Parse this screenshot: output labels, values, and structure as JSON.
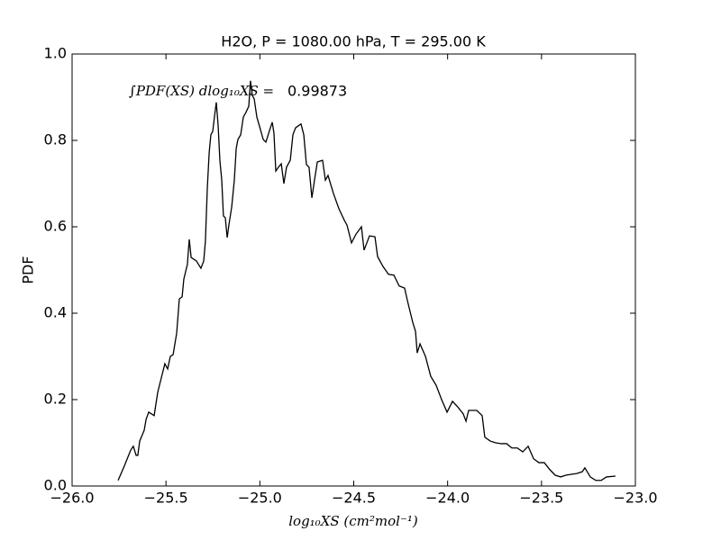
{
  "chart_data": {
    "type": "line",
    "title": "H2O, P = 1080.00 hPa, T = 295.00 K",
    "xlabel": "log₁₀XS (cm²mol⁻¹)",
    "ylabel": "PDF",
    "annotation": "∫PDF(XS) dlog₁₀XS =",
    "annotation_value": 0.99873,
    "xlim": [
      -26,
      -23
    ],
    "ylim": [
      0,
      1
    ],
    "xticks": [
      {
        "value": -26,
        "label": "−26.0"
      },
      {
        "value": -25.5,
        "label": "−25.5"
      },
      {
        "value": -25,
        "label": "−25.0"
      },
      {
        "value": -24.5,
        "label": "−24.5"
      },
      {
        "value": -24,
        "label": "−24.0"
      },
      {
        "value": -23.5,
        "label": "−23.5"
      },
      {
        "value": -23,
        "label": "−23.0"
      }
    ],
    "yticks": [
      {
        "value": 0,
        "label": "0.0"
      },
      {
        "value": 0.2,
        "label": "0.2"
      },
      {
        "value": 0.4,
        "label": "0.4"
      },
      {
        "value": 0.6,
        "label": "0.6"
      },
      {
        "value": 0.8,
        "label": "0.8"
      },
      {
        "value": 1,
        "label": "1.0"
      }
    ],
    "grid": false,
    "series": [
      {
        "color": "#000000",
        "x": [
          -25.755,
          -25.722,
          -25.688,
          -25.674,
          -25.659,
          -25.65,
          -25.64,
          -25.616,
          -25.606,
          -25.592,
          -25.563,
          -25.544,
          -25.525,
          -25.506,
          -25.491,
          -25.477,
          -25.462,
          -25.443,
          -25.429,
          -25.414,
          -25.405,
          -25.386,
          -25.376,
          -25.366,
          -25.338,
          -25.314,
          -25.299,
          -25.29,
          -25.28,
          -25.27,
          -25.261,
          -25.251,
          -25.242,
          -25.232,
          -25.222,
          -25.213,
          -25.203,
          -25.194,
          -25.184,
          -25.174,
          -25.165,
          -25.15,
          -25.136,
          -25.126,
          -25.117,
          -25.102,
          -25.088,
          -25.074,
          -25.059,
          -25.05,
          -25.04,
          -25.03,
          -25.016,
          -25.002,
          -24.982,
          -24.968,
          -24.944,
          -24.934,
          -24.925,
          -24.915,
          -24.901,
          -24.886,
          -24.872,
          -24.858,
          -24.838,
          -24.824,
          -24.81,
          -24.781,
          -24.766,
          -24.752,
          -24.738,
          -24.723,
          -24.709,
          -24.694,
          -24.666,
          -24.651,
          -24.637,
          -24.608,
          -24.579,
          -24.55,
          -24.536,
          -24.512,
          -24.488,
          -24.459,
          -24.445,
          -24.416,
          -24.387,
          -24.373,
          -24.344,
          -24.315,
          -24.286,
          -24.258,
          -24.229,
          -24.214,
          -24.186,
          -24.171,
          -24.162,
          -24.147,
          -24.118,
          -24.09,
          -24.061,
          -24.032,
          -24.003,
          -23.974,
          -23.946,
          -23.917,
          -23.902,
          -23.888,
          -23.845,
          -23.816,
          -23.802,
          -23.773,
          -23.744,
          -23.715,
          -23.686,
          -23.658,
          -23.629,
          -23.6,
          -23.571,
          -23.542,
          -23.514,
          -23.485,
          -23.456,
          -23.427,
          -23.398,
          -23.37,
          -23.341,
          -23.312,
          -23.283,
          -23.269,
          -23.24,
          -23.211,
          -23.182,
          -23.154,
          -23.106
        ],
        "values": [
          0.013,
          0.046,
          0.083,
          0.092,
          0.071,
          0.071,
          0.104,
          0.129,
          0.154,
          0.171,
          0.163,
          0.217,
          0.25,
          0.283,
          0.271,
          0.3,
          0.304,
          0.354,
          0.433,
          0.438,
          0.479,
          0.513,
          0.571,
          0.529,
          0.521,
          0.504,
          0.521,
          0.567,
          0.688,
          0.771,
          0.813,
          0.821,
          0.854,
          0.888,
          0.833,
          0.754,
          0.708,
          0.625,
          0.621,
          0.575,
          0.604,
          0.646,
          0.708,
          0.781,
          0.802,
          0.813,
          0.854,
          0.865,
          0.879,
          0.938,
          0.904,
          0.896,
          0.854,
          0.833,
          0.802,
          0.796,
          0.829,
          0.842,
          0.817,
          0.729,
          0.738,
          0.746,
          0.7,
          0.738,
          0.754,
          0.813,
          0.829,
          0.838,
          0.813,
          0.744,
          0.738,
          0.667,
          0.708,
          0.75,
          0.754,
          0.708,
          0.719,
          0.677,
          0.642,
          0.615,
          0.604,
          0.563,
          0.583,
          0.6,
          0.546,
          0.579,
          0.577,
          0.531,
          0.508,
          0.49,
          0.488,
          0.463,
          0.458,
          0.429,
          0.379,
          0.358,
          0.308,
          0.329,
          0.3,
          0.254,
          0.233,
          0.2,
          0.171,
          0.196,
          0.183,
          0.167,
          0.15,
          0.175,
          0.175,
          0.163,
          0.113,
          0.104,
          0.1,
          0.098,
          0.098,
          0.088,
          0.088,
          0.079,
          0.092,
          0.063,
          0.054,
          0.054,
          0.038,
          0.025,
          0.021,
          0.025,
          0.027,
          0.029,
          0.033,
          0.042,
          0.021,
          0.013,
          0.013,
          0.021,
          0.023
        ]
      }
    ]
  }
}
